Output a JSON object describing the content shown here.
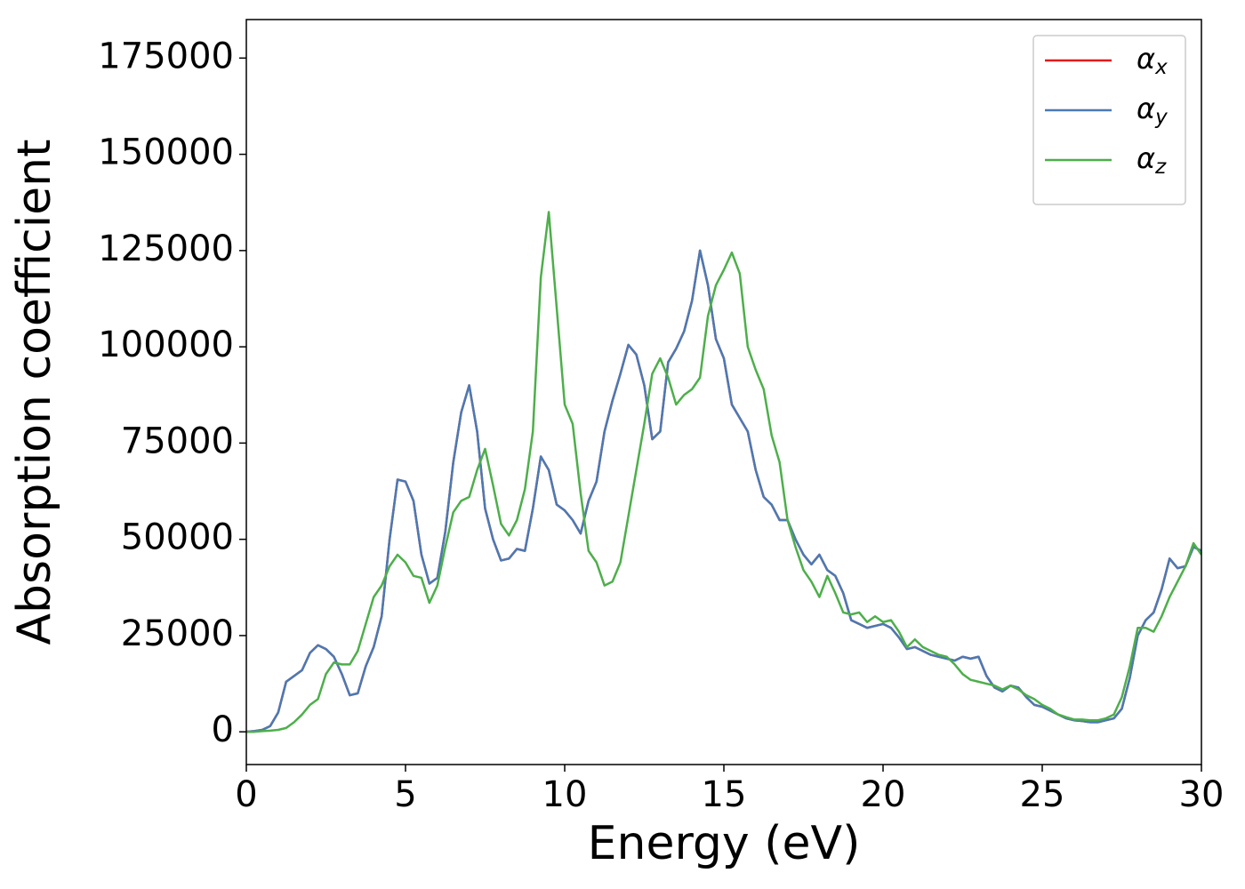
{
  "chart_data": {
    "type": "line",
    "xlabel": "Energy (eV)",
    "ylabel": "Absorption coefficient",
    "xlim": [
      0,
      30
    ],
    "xticks": [
      0,
      5,
      10,
      15,
      20,
      25,
      30
    ],
    "ylim": [
      -8500,
      185000
    ],
    "yticks": [
      0,
      25000,
      50000,
      75000,
      100000,
      125000,
      150000,
      175000
    ],
    "grid": false,
    "legend": "upper right",
    "x": [
      0,
      0.25,
      0.5,
      0.75,
      1,
      1.25,
      1.5,
      1.75,
      2,
      2.25,
      2.5,
      2.75,
      3,
      3.25,
      3.5,
      3.75,
      4,
      4.25,
      4.5,
      4.75,
      5,
      5.25,
      5.5,
      5.75,
      6,
      6.25,
      6.5,
      6.75,
      7,
      7.25,
      7.5,
      7.75,
      8,
      8.25,
      8.5,
      8.75,
      9,
      9.25,
      9.5,
      9.75,
      10,
      10.25,
      10.5,
      10.75,
      11,
      11.25,
      11.5,
      11.75,
      12,
      12.25,
      12.5,
      12.75,
      13,
      13.25,
      13.5,
      13.75,
      14,
      14.25,
      14.5,
      14.75,
      15,
      15.25,
      15.5,
      15.75,
      16,
      16.25,
      16.5,
      16.75,
      17,
      17.25,
      17.5,
      17.75,
      18,
      18.25,
      18.5,
      18.75,
      19,
      19.25,
      19.5,
      19.75,
      20,
      20.25,
      20.5,
      20.75,
      21,
      21.25,
      21.5,
      21.75,
      22,
      22.25,
      22.5,
      22.75,
      23,
      23.25,
      23.5,
      23.75,
      24,
      24.25,
      24.5,
      24.75,
      25,
      25.25,
      25.5,
      25.75,
      26,
      26.25,
      26.5,
      26.75,
      27,
      27.25,
      27.5,
      27.75,
      28,
      28.25,
      28.5,
      28.75,
      29,
      29.25,
      29.5,
      29.75,
      30
    ],
    "series": [
      {
        "name": "αx",
        "color": "#e41a1c",
        "values": [
          0,
          200,
          500,
          1500,
          5000,
          13000,
          14500,
          16000,
          20500,
          22500,
          21500,
          19500,
          15000,
          9500,
          10000,
          17000,
          22000,
          30000,
          50000,
          65500,
          65000,
          60000,
          46000,
          38500,
          40000,
          52000,
          70000,
          83000,
          90000,
          78000,
          58000,
          50000,
          44500,
          45000,
          47500,
          47000,
          58000,
          71500,
          68000,
          59000,
          57500,
          55000,
          51500,
          60000,
          65000,
          78000,
          86000,
          93000,
          100500,
          98000,
          90000,
          76000,
          78000,
          96000,
          99500,
          104000,
          112000,
          125000,
          116000,
          102000,
          97000,
          85000,
          81500,
          78000,
          68000,
          61000,
          59000,
          55000,
          55000,
          50000,
          46000,
          43500,
          46000,
          42000,
          40500,
          36000,
          29000,
          28000,
          27000,
          27500,
          28000,
          27000,
          24500,
          21500,
          22000,
          21000,
          20000,
          19500,
          19000,
          18500,
          19500,
          19000,
          19500,
          14500,
          11500,
          10500,
          12000,
          11500,
          9000,
          7000,
          6500,
          5500,
          4500,
          3500,
          3000,
          2800,
          2500,
          2500,
          3000,
          3500,
          6000,
          14000,
          25000,
          29000,
          31000,
          37000,
          45000,
          42500,
          43000,
          48000,
          47000
        ]
      },
      {
        "name": "αy",
        "color": "#4a7ab4",
        "values": [
          0,
          200,
          500,
          1500,
          5000,
          13000,
          14500,
          16000,
          20500,
          22500,
          21500,
          19500,
          15000,
          9500,
          10000,
          17000,
          22000,
          30000,
          50000,
          65500,
          65000,
          60000,
          46000,
          38500,
          40000,
          52000,
          70000,
          83000,
          90000,
          78000,
          58000,
          50000,
          44500,
          45000,
          47500,
          47000,
          58000,
          71500,
          68000,
          59000,
          57500,
          55000,
          51500,
          60000,
          65000,
          78000,
          86000,
          93000,
          100500,
          98000,
          90000,
          76000,
          78000,
          96000,
          99500,
          104000,
          112000,
          125000,
          116000,
          102000,
          97000,
          85000,
          81500,
          78000,
          68000,
          61000,
          59000,
          55000,
          55000,
          50000,
          46000,
          43500,
          46000,
          42000,
          40500,
          36000,
          29000,
          28000,
          27000,
          27500,
          28000,
          27000,
          24500,
          21500,
          22000,
          21000,
          20000,
          19500,
          19000,
          18500,
          19500,
          19000,
          19500,
          14500,
          11500,
          10500,
          12000,
          11500,
          9000,
          7000,
          6500,
          5500,
          4500,
          3500,
          3000,
          2800,
          2500,
          2500,
          3000,
          3500,
          6000,
          14000,
          25000,
          29000,
          31000,
          37000,
          45000,
          42500,
          43000,
          48000,
          47000
        ]
      },
      {
        "name": "αz",
        "color": "#4daf4a",
        "values": [
          0,
          0,
          200,
          300,
          500,
          1000,
          2500,
          4500,
          7000,
          8500,
          15000,
          18000,
          17500,
          17500,
          21000,
          28000,
          35000,
          38000,
          43000,
          46000,
          44000,
          40500,
          40000,
          33500,
          38000,
          48000,
          57000,
          60000,
          61000,
          68000,
          73500,
          64000,
          54000,
          51000,
          55000,
          63000,
          78000,
          118000,
          135000,
          110000,
          85000,
          80000,
          62000,
          47000,
          44000,
          38000,
          39000,
          44000,
          56000,
          68000,
          80000,
          93000,
          97000,
          92000,
          85000,
          87500,
          89000,
          92000,
          108000,
          116000,
          120000,
          124500,
          119000,
          100000,
          94000,
          89000,
          77000,
          70000,
          55000,
          48000,
          42000,
          39000,
          35000,
          40500,
          36000,
          31000,
          30500,
          31000,
          28500,
          30000,
          28500,
          29000,
          26000,
          22000,
          24000,
          22000,
          21000,
          20000,
          19500,
          17500,
          15000,
          13500,
          13000,
          12500,
          12000,
          11000,
          12000,
          11000,
          9500,
          8500,
          7000,
          6000,
          4500,
          3800,
          3200,
          3200,
          3000,
          3000,
          3500,
          4500,
          9000,
          17000,
          27000,
          27000,
          26000,
          30000,
          35000,
          39000,
          43000,
          49000,
          46000
        ]
      }
    ]
  }
}
